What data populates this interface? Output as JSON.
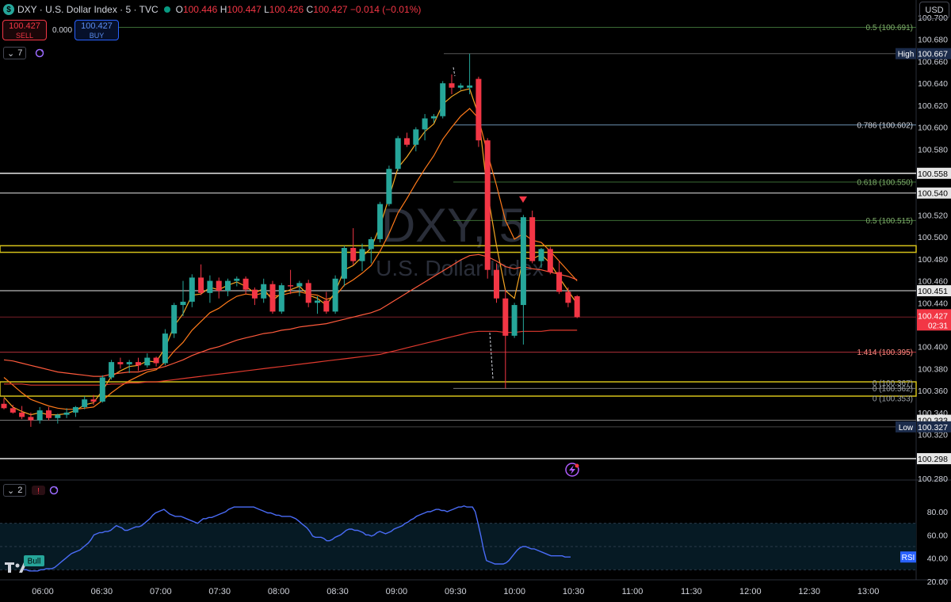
{
  "header": {
    "symbol": "DXY · U.S. Dollar Index · 5 · TVC",
    "logo": "$",
    "ohlc_o": "O",
    "ohlc_o_val": "100.446",
    "ohlc_h": "H",
    "ohlc_h_val": "100.447",
    "ohlc_l": "L",
    "ohlc_l_val": "100.426",
    "ohlc_c": "C",
    "ohlc_c_val": "100.427",
    "change": "−0.014 (−0.01%)"
  },
  "trade": {
    "sell_price": "100.427",
    "sell_label": "SELL",
    "spread": "0.000",
    "buy_price": "100.427",
    "buy_label": "BUY"
  },
  "indicators": {
    "main_count": "7",
    "rsi_count": "2"
  },
  "currency": "USD",
  "watermark": {
    "symbol": "DXY, 5",
    "name": "U.S. Dollar Index"
  },
  "colors": {
    "up": "#26a69a",
    "down": "#f23645",
    "ema_fast": "#f5a623",
    "ema_mid": "#ff7a1a",
    "ema_slow": "#e03a2e",
    "rsi": "#4a6cf7",
    "level_white": "#e6e6e6",
    "fib_green": "#5a8a4a",
    "yellow_zone": "#d4c01a"
  },
  "price_axis": {
    "ticks": [
      "100.700",
      "100.680",
      "100.660",
      "100.640",
      "100.620",
      "100.600",
      "100.580",
      "100.560",
      "100.540",
      "100.520",
      "100.500",
      "100.480",
      "100.460",
      "100.440",
      "100.420",
      "100.400",
      "100.380",
      "100.360",
      "100.340",
      "100.320",
      "100.300",
      "100.280"
    ]
  },
  "price_labels": {
    "high_tag": "High",
    "high": "100.667",
    "low_tag": "Low",
    "low": "100.327",
    "current": "100.427",
    "countdown": "02:31",
    "levels": [
      "100.558",
      "100.540",
      "100.451",
      "100.333",
      "100.298"
    ]
  },
  "fib_labels": {
    "f05_top": "0.5 (100.691)",
    "f0786": "0.786 (100.602)",
    "f0618": "0.618 (100.550)",
    "f05": "0.5 (100.515)",
    "f1414": "1.414 (100.395)",
    "f0a": "0 (100.367)",
    "f0b": "0 (100.362)",
    "f0c": "0 (100.353)"
  },
  "rsi": {
    "label": "RSI",
    "ticks": [
      "80.00",
      "60.00",
      "40.00",
      "20.00"
    ],
    "bull_label": "Bull",
    "values": [
      30,
      30,
      29,
      29,
      29,
      29,
      30,
      30,
      31,
      31,
      31,
      32,
      34,
      36,
      38,
      40,
      42,
      44,
      45,
      46,
      47,
      49,
      51,
      53,
      56,
      60,
      61,
      62,
      62,
      63,
      63,
      64,
      66,
      68,
      67,
      66,
      64,
      64,
      65,
      66,
      67,
      67,
      68,
      70,
      72,
      74,
      77,
      79,
      80,
      81,
      82,
      80,
      78,
      77,
      76,
      76,
      76,
      75,
      74,
      73,
      72,
      71,
      70,
      72,
      74,
      74,
      75,
      75,
      76,
      77,
      78,
      79,
      80,
      82,
      83,
      84,
      84,
      84,
      84,
      84,
      84,
      84,
      84,
      83,
      82,
      81,
      80,
      79,
      79,
      78,
      77,
      77,
      76,
      76,
      76,
      76,
      75,
      74,
      72,
      70,
      68,
      66,
      63,
      59,
      58,
      58,
      58,
      57,
      55,
      55,
      56,
      58,
      59,
      60,
      62,
      64,
      65,
      65,
      64,
      64,
      63,
      62,
      60,
      60,
      59,
      60,
      62,
      63,
      62,
      61,
      62,
      63,
      65,
      66,
      67,
      68,
      70,
      71,
      73,
      74,
      76,
      77,
      78,
      79,
      80,
      80,
      81,
      82,
      82,
      81,
      81,
      80,
      81,
      82,
      83,
      84,
      84,
      85,
      84,
      84,
      84,
      80,
      70,
      59,
      47,
      38,
      37,
      36,
      35,
      35,
      35,
      35,
      36,
      38,
      41,
      44,
      47,
      49,
      50,
      50,
      49,
      48,
      48,
      47,
      46,
      45,
      44,
      43,
      42,
      42,
      42,
      42,
      42,
      41,
      41,
      41
    ]
  },
  "time_axis": {
    "ticks": [
      "06:00",
      "06:30",
      "07:00",
      "07:30",
      "08:00",
      "08:30",
      "09:00",
      "09:30",
      "10:00",
      "10:30",
      "11:00",
      "11:30",
      "12:00",
      "12:30",
      "13:00"
    ]
  },
  "chart_data": {
    "type": "candlestick",
    "title": "DXY · U.S. Dollar Index · 5 · TVC",
    "interval": "5 minutes",
    "xlabel": "",
    "ylabel": "",
    "ylim": [
      100.28,
      100.7
    ],
    "time_ticks": [
      "06:00",
      "06:30",
      "07:00",
      "07:30",
      "08:00",
      "08:30",
      "09:00",
      "09:30",
      "10:00",
      "10:30",
      "11:00",
      "11:30",
      "12:00",
      "12:30",
      "13:00"
    ],
    "start_time": "05:55",
    "bar_minutes": 5,
    "candles": [
      {
        "o": 100.348,
        "h": 100.353,
        "l": 100.343,
        "c": 100.344
      },
      {
        "o": 100.344,
        "h": 100.347,
        "l": 100.339,
        "c": 100.34
      },
      {
        "o": 100.34,
        "h": 100.346,
        "l": 100.334,
        "c": 100.336
      },
      {
        "o": 100.336,
        "h": 100.34,
        "l": 100.327,
        "c": 100.333
      },
      {
        "o": 100.333,
        "h": 100.345,
        "l": 100.33,
        "c": 100.342
      },
      {
        "o": 100.342,
        "h": 100.345,
        "l": 100.333,
        "c": 100.335
      },
      {
        "o": 100.335,
        "h": 100.339,
        "l": 100.33,
        "c": 100.338
      },
      {
        "o": 100.338,
        "h": 100.344,
        "l": 100.335,
        "c": 100.34
      },
      {
        "o": 100.34,
        "h": 100.346,
        "l": 100.336,
        "c": 100.345
      },
      {
        "o": 100.345,
        "h": 100.355,
        "l": 100.343,
        "c": 100.352
      },
      {
        "o": 100.352,
        "h": 100.356,
        "l": 100.347,
        "c": 100.35
      },
      {
        "o": 100.35,
        "h": 100.374,
        "l": 100.349,
        "c": 100.372
      },
      {
        "o": 100.372,
        "h": 100.388,
        "l": 100.37,
        "c": 100.386
      },
      {
        "o": 100.386,
        "h": 100.39,
        "l": 100.38,
        "c": 100.384
      },
      {
        "o": 100.384,
        "h": 100.388,
        "l": 100.376,
        "c": 100.386
      },
      {
        "o": 100.386,
        "h": 100.39,
        "l": 100.378,
        "c": 100.383
      },
      {
        "o": 100.383,
        "h": 100.394,
        "l": 100.381,
        "c": 100.39
      },
      {
        "o": 100.39,
        "h": 100.391,
        "l": 100.382,
        "c": 100.385
      },
      {
        "o": 100.385,
        "h": 100.416,
        "l": 100.383,
        "c": 100.412
      },
      {
        "o": 100.412,
        "h": 100.44,
        "l": 100.408,
        "c": 100.438
      },
      {
        "o": 100.438,
        "h": 100.46,
        "l": 100.428,
        "c": 100.441
      },
      {
        "o": 100.441,
        "h": 100.466,
        "l": 100.436,
        "c": 100.463
      },
      {
        "o": 100.463,
        "h": 100.475,
        "l": 100.447,
        "c": 100.449
      },
      {
        "o": 100.449,
        "h": 100.465,
        "l": 100.44,
        "c": 100.46
      },
      {
        "o": 100.46,
        "h": 100.463,
        "l": 100.444,
        "c": 100.451
      },
      {
        "o": 100.451,
        "h": 100.462,
        "l": 100.446,
        "c": 100.46
      },
      {
        "o": 100.46,
        "h": 100.464,
        "l": 100.455,
        "c": 100.462
      },
      {
        "o": 100.462,
        "h": 100.464,
        "l": 100.448,
        "c": 100.452
      },
      {
        "o": 100.452,
        "h": 100.454,
        "l": 100.438,
        "c": 100.444
      },
      {
        "o": 100.444,
        "h": 100.462,
        "l": 100.44,
        "c": 100.457
      },
      {
        "o": 100.457,
        "h": 100.46,
        "l": 100.43,
        "c": 100.432
      },
      {
        "o": 100.432,
        "h": 100.458,
        "l": 100.43,
        "c": 100.456
      },
      {
        "o": 100.456,
        "h": 100.47,
        "l": 100.448,
        "c": 100.455
      },
      {
        "o": 100.455,
        "h": 100.46,
        "l": 100.446,
        "c": 100.458
      },
      {
        "o": 100.458,
        "h": 100.461,
        "l": 100.436,
        "c": 100.44
      },
      {
        "o": 100.44,
        "h": 100.446,
        "l": 100.43,
        "c": 100.442
      },
      {
        "o": 100.442,
        "h": 100.45,
        "l": 100.43,
        "c": 100.432
      },
      {
        "o": 100.432,
        "h": 100.465,
        "l": 100.43,
        "c": 100.462
      },
      {
        "o": 100.462,
        "h": 100.492,
        "l": 100.455,
        "c": 100.49
      },
      {
        "o": 100.49,
        "h": 100.508,
        "l": 100.474,
        "c": 100.478
      },
      {
        "o": 100.478,
        "h": 100.494,
        "l": 100.469,
        "c": 100.489
      },
      {
        "o": 100.489,
        "h": 100.5,
        "l": 100.476,
        "c": 100.498
      },
      {
        "o": 100.498,
        "h": 100.532,
        "l": 100.495,
        "c": 100.53
      },
      {
        "o": 100.53,
        "h": 100.565,
        "l": 100.528,
        "c": 100.562
      },
      {
        "o": 100.562,
        "h": 100.592,
        "l": 100.56,
        "c": 100.59
      },
      {
        "o": 100.59,
        "h": 100.595,
        "l": 100.582,
        "c": 100.584
      },
      {
        "o": 100.584,
        "h": 100.6,
        "l": 100.578,
        "c": 100.598
      },
      {
        "o": 100.598,
        "h": 100.612,
        "l": 100.588,
        "c": 100.608
      },
      {
        "o": 100.608,
        "h": 100.612,
        "l": 100.604,
        "c": 100.61
      },
      {
        "o": 100.61,
        "h": 100.642,
        "l": 100.608,
        "c": 100.64
      },
      {
        "o": 100.64,
        "h": 100.648,
        "l": 100.63,
        "c": 100.636
      },
      {
        "o": 100.636,
        "h": 100.64,
        "l": 100.634,
        "c": 100.638
      },
      {
        "o": 100.636,
        "h": 100.667,
        "l": 100.63,
        "c": 100.638
      },
      {
        "o": 100.644,
        "h": 100.646,
        "l": 100.582,
        "c": 100.588
      },
      {
        "o": 100.588,
        "h": 100.59,
        "l": 100.462,
        "c": 100.47
      },
      {
        "o": 100.47,
        "h": 100.476,
        "l": 100.44,
        "c": 100.444
      },
      {
        "o": 100.444,
        "h": 100.452,
        "l": 100.362,
        "c": 100.41
      },
      {
        "o": 100.41,
        "h": 100.44,
        "l": 100.408,
        "c": 100.438
      },
      {
        "o": 100.438,
        "h": 100.52,
        "l": 100.402,
        "c": 100.518
      },
      {
        "o": 100.518,
        "h": 100.524,
        "l": 100.476,
        "c": 100.478
      },
      {
        "o": 100.478,
        "h": 100.49,
        "l": 100.472,
        "c": 100.489
      },
      {
        "o": 100.489,
        "h": 100.491,
        "l": 100.466,
        "c": 100.468
      },
      {
        "o": 100.468,
        "h": 100.478,
        "l": 100.448,
        "c": 100.45
      },
      {
        "o": 100.45,
        "h": 100.454,
        "l": 100.436,
        "c": 100.44
      },
      {
        "o": 100.446,
        "h": 100.447,
        "l": 100.426,
        "c": 100.427
      }
    ],
    "series": [
      {
        "values": [
          100.354,
          100.345,
          100.341,
          100.338,
          100.34,
          100.338,
          100.338,
          100.339,
          100.342,
          100.347,
          100.349,
          100.36,
          100.373,
          100.378,
          100.382,
          100.383,
          100.387,
          100.386,
          100.399,
          100.419,
          100.43,
          100.447,
          100.448,
          100.454,
          100.452,
          100.456,
          100.459,
          100.455,
          100.449,
          100.453,
          100.442,
          100.449,
          100.452,
          100.455,
          100.447,
          100.444,
          100.438,
          100.45,
          100.47,
          100.474,
          100.482,
          100.49,
          100.51,
          100.536,
          100.563,
          100.573,
          100.585,
          100.596,
          100.603,
          100.621,
          100.628,
          100.633,
          100.635,
          100.611,
          100.54,
          100.492,
          100.451,
          100.444,
          100.481,
          100.48,
          100.484,
          100.476,
          100.463,
          100.451,
          100.439
        ]
      },
      {
        "values": [
          100.372,
          100.365,
          100.358,
          100.352,
          100.349,
          100.346,
          100.344,
          100.343,
          100.343,
          100.344,
          100.345,
          100.351,
          100.358,
          100.364,
          100.369,
          100.373,
          100.377,
          100.379,
          100.386,
          100.396,
          100.404,
          100.415,
          100.423,
          100.431,
          100.435,
          100.441,
          100.446,
          100.448,
          100.447,
          100.449,
          100.446,
          100.447,
          100.449,
          100.45,
          100.448,
          100.447,
          100.443,
          100.446,
          100.456,
          100.461,
          100.467,
          100.474,
          100.487,
          100.503,
          100.522,
          100.535,
          100.549,
          100.562,
          100.574,
          100.589,
          100.6,
          100.61,
          100.617,
          100.608,
          100.576,
          100.547,
          100.515,
          100.498,
          100.503,
          100.497,
          100.495,
          100.487,
          100.478,
          100.469,
          100.46
        ]
      },
      {
        "values": [
          100.388,
          100.387,
          100.385,
          100.383,
          100.381,
          100.379,
          100.377,
          100.376,
          100.375,
          100.374,
          100.373,
          100.373,
          100.375,
          100.376,
          100.377,
          100.377,
          100.379,
          100.38,
          100.382,
          100.385,
          100.388,
          100.392,
          100.395,
          100.398,
          100.4,
          100.403,
          100.406,
          100.408,
          100.41,
          100.412,
          100.413,
          100.415,
          100.416,
          100.418,
          100.419,
          100.42,
          100.421,
          100.423,
          100.425,
          100.427,
          100.429,
          100.431,
          100.434,
          100.439,
          100.444,
          100.449,
          100.454,
          100.459,
          100.464,
          100.469,
          100.474,
          100.479,
          100.483,
          100.484,
          100.482,
          100.478,
          100.473,
          100.471,
          100.473,
          100.471,
          100.47,
          100.468,
          100.466,
          100.464,
          100.461
        ]
      },
      {
        "values": [
          100.366,
          100.366,
          100.366,
          100.365,
          100.365,
          100.365,
          100.365,
          100.365,
          100.365,
          100.365,
          100.365,
          100.365,
          100.366,
          100.366,
          100.367,
          100.367,
          100.368,
          100.368,
          100.369,
          100.37,
          100.371,
          100.372,
          100.373,
          100.374,
          100.375,
          100.376,
          100.377,
          100.378,
          100.379,
          100.38,
          100.381,
          100.382,
          100.383,
          100.384,
          100.385,
          100.386,
          100.387,
          100.388,
          100.389,
          100.39,
          100.391,
          100.392,
          100.393,
          100.395,
          100.397,
          100.399,
          100.401,
          100.403,
          100.405,
          100.407,
          100.409,
          100.411,
          100.413,
          100.414,
          100.414,
          100.414,
          100.413,
          100.413,
          100.414,
          100.414,
          100.414,
          100.415,
          100.415,
          100.415,
          100.415
        ]
      }
    ],
    "horizontal_levels": [
      100.691,
      100.602,
      100.558,
      100.55,
      100.54,
      100.515,
      100.492,
      100.486,
      100.451,
      100.427,
      100.395,
      100.367,
      100.362,
      100.353,
      100.333,
      100.298
    ]
  }
}
